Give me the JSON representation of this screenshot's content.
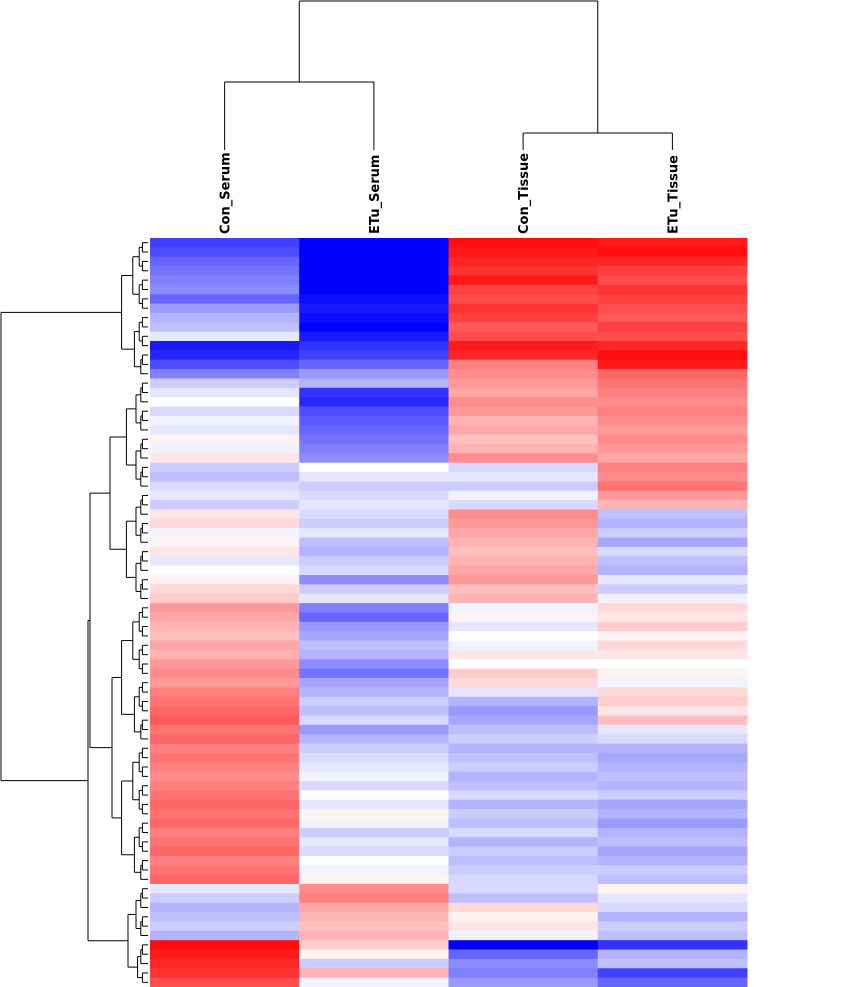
{
  "chart_data": {
    "type": "heatmap",
    "title": "",
    "columns": [
      "Con_Serum",
      "ETu_Serum",
      "Con_Tissue",
      "ETu_Tissue"
    ],
    "column_dendrogram": {
      "merge_order": [
        [
          0,
          1
        ],
        [
          2,
          3
        ],
        [
          [
            0,
            1
          ],
          [
            2,
            3
          ]
        ]
      ],
      "heights": [
        0.55,
        0.42,
        1.0
      ]
    },
    "row_dendrogram": {
      "main_groups": [
        {
          "name": "",
          "rows": [
            0,
            14
          ]
        },
        {
          "name": "",
          "rows": [
            15,
            38
          ]
        },
        {
          "name": "",
          "rows": [
            39,
            68
          ]
        },
        {
          "name": "",
          "rows": [
            69,
            79
          ]
        }
      ],
      "heights": [
        0.55,
        0.85,
        0.45,
        0.95,
        1.0
      ]
    },
    "color_scale": {
      "low": "#0000ff",
      "mid": "#ffffff",
      "high": "#ff0000",
      "range": [
        -1,
        1
      ]
    },
    "values": [
      [
        -0.75,
        -1.0,
        0.95,
        0.9
      ],
      [
        -0.7,
        -1.0,
        0.9,
        0.95
      ],
      [
        -0.6,
        -1.0,
        0.85,
        0.85
      ],
      [
        -0.55,
        -1.0,
        0.8,
        0.75
      ],
      [
        -0.5,
        -1.0,
        0.9,
        0.7
      ],
      [
        -0.45,
        -1.0,
        0.75,
        0.8
      ],
      [
        -0.6,
        -0.95,
        0.7,
        0.75
      ],
      [
        -0.4,
        -0.9,
        0.8,
        0.7
      ],
      [
        -0.3,
        -0.95,
        0.75,
        0.65
      ],
      [
        -0.25,
        -1.0,
        0.65,
        0.75
      ],
      [
        -0.1,
        -0.9,
        0.7,
        0.7
      ],
      [
        -0.9,
        -0.8,
        0.9,
        0.85
      ],
      [
        -0.85,
        -0.75,
        0.85,
        0.95
      ],
      [
        -0.7,
        -0.6,
        0.5,
        0.9
      ],
      [
        -0.5,
        -0.4,
        0.45,
        0.6
      ],
      [
        -0.2,
        -0.3,
        0.4,
        0.55
      ],
      [
        -0.1,
        -0.8,
        0.35,
        0.5
      ],
      [
        0.0,
        -0.85,
        0.45,
        0.45
      ],
      [
        -0.15,
        -0.7,
        0.4,
        0.5
      ],
      [
        -0.05,
        -0.65,
        0.3,
        0.45
      ],
      [
        -0.1,
        -0.6,
        0.35,
        0.4
      ],
      [
        0.05,
        -0.55,
        0.25,
        0.45
      ],
      [
        -0.05,
        -0.5,
        0.3,
        0.4
      ],
      [
        0.1,
        -0.45,
        0.45,
        0.35
      ],
      [
        -0.2,
        0.0,
        -0.15,
        0.5
      ],
      [
        -0.25,
        -0.1,
        -0.1,
        0.45
      ],
      [
        -0.15,
        -0.2,
        -0.2,
        0.55
      ],
      [
        -0.1,
        -0.15,
        -0.05,
        0.4
      ],
      [
        -0.2,
        -0.1,
        -0.15,
        0.3
      ],
      [
        0.1,
        -0.15,
        0.45,
        -0.25
      ],
      [
        0.15,
        -0.2,
        0.4,
        -0.3
      ],
      [
        -0.05,
        -0.1,
        0.35,
        -0.2
      ],
      [
        0.05,
        -0.25,
        0.3,
        -0.35
      ],
      [
        0.1,
        -0.3,
        0.25,
        -0.15
      ],
      [
        -0.1,
        -0.2,
        0.3,
        -0.25
      ],
      [
        0.0,
        -0.15,
        0.35,
        -0.3
      ],
      [
        0.05,
        -0.45,
        0.4,
        -0.1
      ],
      [
        0.15,
        -0.2,
        0.25,
        -0.2
      ],
      [
        0.2,
        -0.1,
        0.3,
        -0.05
      ],
      [
        0.4,
        -0.5,
        -0.05,
        0.15
      ],
      [
        0.35,
        -0.6,
        0.05,
        0.1
      ],
      [
        0.3,
        -0.4,
        -0.1,
        0.2
      ],
      [
        0.25,
        -0.35,
        0.0,
        0.05
      ],
      [
        0.35,
        -0.25,
        -0.05,
        0.15
      ],
      [
        0.3,
        -0.3,
        0.1,
        0.1
      ],
      [
        0.4,
        -0.45,
        0.0,
        0.0
      ],
      [
        0.45,
        -0.55,
        0.2,
        0.05
      ],
      [
        0.4,
        -0.35,
        0.15,
        -0.05
      ],
      [
        0.5,
        -0.3,
        -0.1,
        0.15
      ],
      [
        0.55,
        -0.2,
        -0.3,
        0.2
      ],
      [
        0.6,
        -0.25,
        -0.4,
        0.1
      ],
      [
        0.65,
        -0.15,
        -0.35,
        0.25
      ],
      [
        0.55,
        -0.4,
        -0.25,
        -0.1
      ],
      [
        0.6,
        -0.3,
        -0.2,
        -0.15
      ],
      [
        0.5,
        -0.2,
        -0.3,
        -0.3
      ],
      [
        0.55,
        -0.15,
        -0.25,
        -0.35
      ],
      [
        0.5,
        -0.1,
        -0.2,
        -0.3
      ],
      [
        0.45,
        -0.05,
        -0.3,
        -0.25
      ],
      [
        0.5,
        -0.15,
        -0.25,
        -0.3
      ],
      [
        0.55,
        0.0,
        -0.15,
        -0.2
      ],
      [
        0.6,
        -0.1,
        -0.3,
        -0.35
      ],
      [
        0.55,
        0.05,
        -0.2,
        -0.3
      ],
      [
        0.6,
        -0.05,
        -0.25,
        -0.4
      ],
      [
        0.5,
        -0.2,
        -0.15,
        -0.3
      ],
      [
        0.55,
        -0.1,
        -0.3,
        -0.25
      ],
      [
        0.6,
        -0.15,
        -0.2,
        -0.35
      ],
      [
        0.5,
        0.0,
        -0.25,
        -0.3
      ],
      [
        0.55,
        -0.05,
        -0.2,
        -0.2
      ],
      [
        0.6,
        0.05,
        -0.15,
        -0.25
      ],
      [
        -0.1,
        0.45,
        -0.15,
        0.05
      ],
      [
        -0.2,
        0.5,
        -0.25,
        -0.1
      ],
      [
        -0.3,
        0.35,
        0.15,
        -0.15
      ],
      [
        -0.25,
        0.3,
        0.05,
        -0.3
      ],
      [
        -0.2,
        0.25,
        0.1,
        -0.2
      ],
      [
        -0.3,
        0.3,
        -0.05,
        -0.25
      ],
      [
        0.95,
        0.2,
        -1.0,
        -0.8
      ],
      [
        0.9,
        0.05,
        -0.6,
        -0.3
      ],
      [
        0.85,
        -0.2,
        -0.45,
        -0.25
      ],
      [
        0.8,
        0.3,
        -0.5,
        -0.75
      ],
      [
        0.7,
        -0.05,
        -0.4,
        -0.6
      ]
    ]
  }
}
